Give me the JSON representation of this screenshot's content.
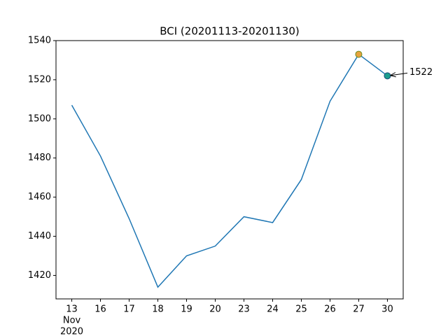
{
  "chart_data": {
    "type": "line",
    "title": "BCI (20201113-20201130)",
    "categories": [
      "13",
      "16",
      "17",
      "18",
      "19",
      "20",
      "23",
      "24",
      "25",
      "26",
      "27",
      "30"
    ],
    "x_sublabel": [
      "Nov",
      "2020"
    ],
    "series": [
      {
        "name": "BCI",
        "color": "#1f77b4",
        "values": [
          1507,
          1481,
          1449,
          1414,
          1430,
          1435,
          1450,
          1447,
          1469,
          1509,
          1533,
          1522
        ]
      }
    ],
    "markers": [
      {
        "x": "27",
        "y": 1533,
        "color": "#e8a33d",
        "edge": "#6b8e23"
      },
      {
        "x": "30",
        "y": 1522,
        "color": "#1a9e8f",
        "edge": "#1f4e79"
      }
    ],
    "annotation": {
      "text": "1522",
      "x": "30",
      "y": 1522
    },
    "ylim": [
      1408,
      1540
    ],
    "yticks": [
      1420,
      1440,
      1460,
      1480,
      1500,
      1520,
      1540
    ]
  }
}
